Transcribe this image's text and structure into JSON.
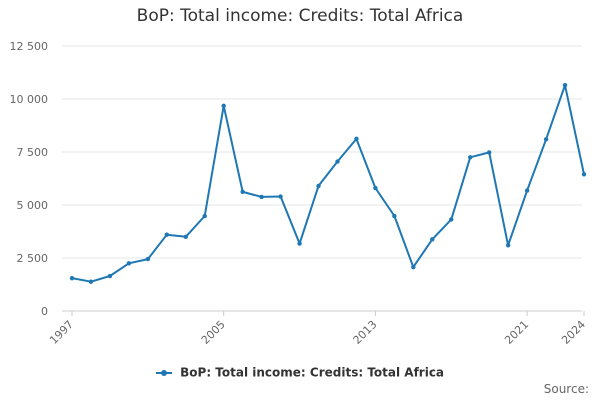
{
  "source_label": "Source:",
  "chart_data": {
    "type": "line",
    "title": "BoP: Total income: Credits: Total Africa",
    "xlabel": "",
    "ylabel": "",
    "x": [
      1997,
      1998,
      1999,
      2000,
      2001,
      2002,
      2003,
      2004,
      2005,
      2006,
      2007,
      2008,
      2009,
      2010,
      2011,
      2012,
      2013,
      2014,
      2015,
      2016,
      2017,
      2018,
      2019,
      2020,
      2021,
      2022,
      2023,
      2024
    ],
    "xticks": [
      "1997",
      "2005",
      "2013",
      "2021",
      "2024"
    ],
    "ylim": [
      0,
      12500
    ],
    "yticks": [
      0,
      2500,
      5000,
      7500,
      10000,
      12500
    ],
    "ytick_labels": [
      "0",
      "2 500",
      "5 000",
      "7 500",
      "10 000",
      "12 500"
    ],
    "grid": true,
    "legend_position": "bottom",
    "color": "#1f77b4",
    "series": [
      {
        "name": "BoP: Total income: Credits: Total Africa",
        "values": [
          1550,
          1380,
          1650,
          2250,
          2450,
          3600,
          3500,
          4480,
          9680,
          5620,
          5380,
          5400,
          3180,
          5900,
          7050,
          8120,
          5800,
          4480,
          2070,
          3380,
          4320,
          7250,
          7480,
          3100,
          5680,
          8100,
          10650,
          6450
        ]
      }
    ]
  }
}
